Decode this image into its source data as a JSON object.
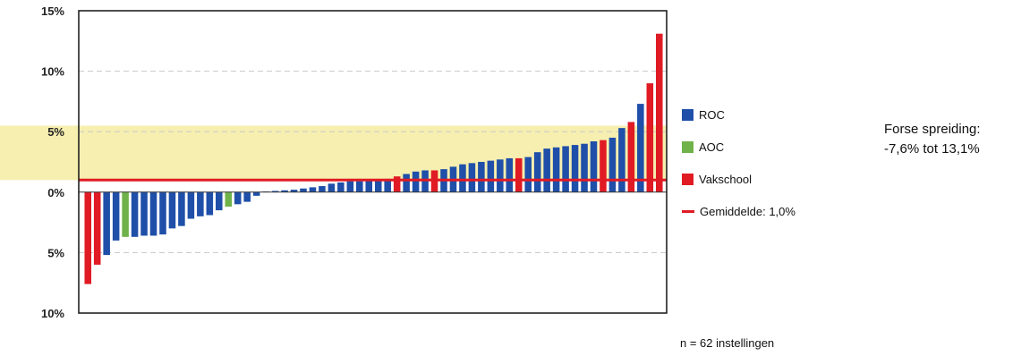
{
  "colors": {
    "ROC": "#1f4fa8",
    "AOC": "#6fb24a",
    "Vakschool": "#e01b24",
    "average": "#e01b24",
    "band": "#f6efb0",
    "grid": "#c8c8c8"
  },
  "chart_data": {
    "type": "bar",
    "xlabel": "",
    "ylabel": "",
    "ylim": [
      -10,
      15
    ],
    "yticks": [
      {
        "value": 15,
        "label": "15%"
      },
      {
        "value": 10,
        "label": "10%"
      },
      {
        "value": 5,
        "label": "5%"
      },
      {
        "value": 0,
        "label": "0%"
      },
      {
        "value": -5,
        "label": "5%"
      },
      {
        "value": -10,
        "label": "10%"
      }
    ],
    "grid": true,
    "legend_position": "right",
    "band": {
      "from": 1,
      "to": 5.5
    },
    "average": {
      "label": "Gemiddelde: 1,0%",
      "value": 1.0
    },
    "legend": [
      {
        "key": "ROC",
        "label": "ROC"
      },
      {
        "key": "AOC",
        "label": "AOC"
      },
      {
        "key": "Vakschool",
        "label": "Vakschool"
      }
    ],
    "bars": [
      {
        "type": "Vakschool",
        "value": -7.6
      },
      {
        "type": "Vakschool",
        "value": -6.0
      },
      {
        "type": "ROC",
        "value": -5.2
      },
      {
        "type": "ROC",
        "value": -4.0
      },
      {
        "type": "AOC",
        "value": -3.7
      },
      {
        "type": "ROC",
        "value": -3.7
      },
      {
        "type": "ROC",
        "value": -3.6
      },
      {
        "type": "ROC",
        "value": -3.6
      },
      {
        "type": "ROC",
        "value": -3.5
      },
      {
        "type": "ROC",
        "value": -3.0
      },
      {
        "type": "ROC",
        "value": -2.8
      },
      {
        "type": "ROC",
        "value": -2.2
      },
      {
        "type": "ROC",
        "value": -2.0
      },
      {
        "type": "ROC",
        "value": -1.9
      },
      {
        "type": "ROC",
        "value": -1.5
      },
      {
        "type": "AOC",
        "value": -1.2
      },
      {
        "type": "ROC",
        "value": -1.0
      },
      {
        "type": "ROC",
        "value": -0.8
      },
      {
        "type": "ROC",
        "value": -0.3
      },
      {
        "type": "ROC",
        "value": 0.05
      },
      {
        "type": "ROC",
        "value": 0.1
      },
      {
        "type": "ROC",
        "value": 0.15
      },
      {
        "type": "ROC",
        "value": 0.2
      },
      {
        "type": "ROC",
        "value": 0.3
      },
      {
        "type": "ROC",
        "value": 0.4
      },
      {
        "type": "ROC",
        "value": 0.5
      },
      {
        "type": "ROC",
        "value": 0.7
      },
      {
        "type": "ROC",
        "value": 0.8
      },
      {
        "type": "ROC",
        "value": 0.9
      },
      {
        "type": "ROC",
        "value": 0.9
      },
      {
        "type": "ROC",
        "value": 1.0
      },
      {
        "type": "ROC",
        "value": 1.0
      },
      {
        "type": "ROC",
        "value": 1.1
      },
      {
        "type": "Vakschool",
        "value": 1.3
      },
      {
        "type": "ROC",
        "value": 1.5
      },
      {
        "type": "ROC",
        "value": 1.7
      },
      {
        "type": "ROC",
        "value": 1.8
      },
      {
        "type": "Vakschool",
        "value": 1.8
      },
      {
        "type": "ROC",
        "value": 1.9
      },
      {
        "type": "ROC",
        "value": 2.1
      },
      {
        "type": "ROC",
        "value": 2.3
      },
      {
        "type": "ROC",
        "value": 2.4
      },
      {
        "type": "ROC",
        "value": 2.5
      },
      {
        "type": "ROC",
        "value": 2.6
      },
      {
        "type": "ROC",
        "value": 2.7
      },
      {
        "type": "ROC",
        "value": 2.8
      },
      {
        "type": "Vakschool",
        "value": 2.8
      },
      {
        "type": "ROC",
        "value": 2.9
      },
      {
        "type": "ROC",
        "value": 3.3
      },
      {
        "type": "ROC",
        "value": 3.6
      },
      {
        "type": "ROC",
        "value": 3.7
      },
      {
        "type": "ROC",
        "value": 3.8
      },
      {
        "type": "ROC",
        "value": 3.9
      },
      {
        "type": "ROC",
        "value": 4.0
      },
      {
        "type": "ROC",
        "value": 4.2
      },
      {
        "type": "Vakschool",
        "value": 4.3
      },
      {
        "type": "ROC",
        "value": 4.5
      },
      {
        "type": "ROC",
        "value": 5.3
      },
      {
        "type": "Vakschool",
        "value": 5.8
      },
      {
        "type": "ROC",
        "value": 7.3
      },
      {
        "type": "Vakschool",
        "value": 9.0
      },
      {
        "type": "Vakschool",
        "value": 13.1
      }
    ]
  },
  "annotation": {
    "line1": "Forse spreiding:",
    "line2": "-7,6% tot 13,1%"
  },
  "footnote": "n = 62 instellingen"
}
